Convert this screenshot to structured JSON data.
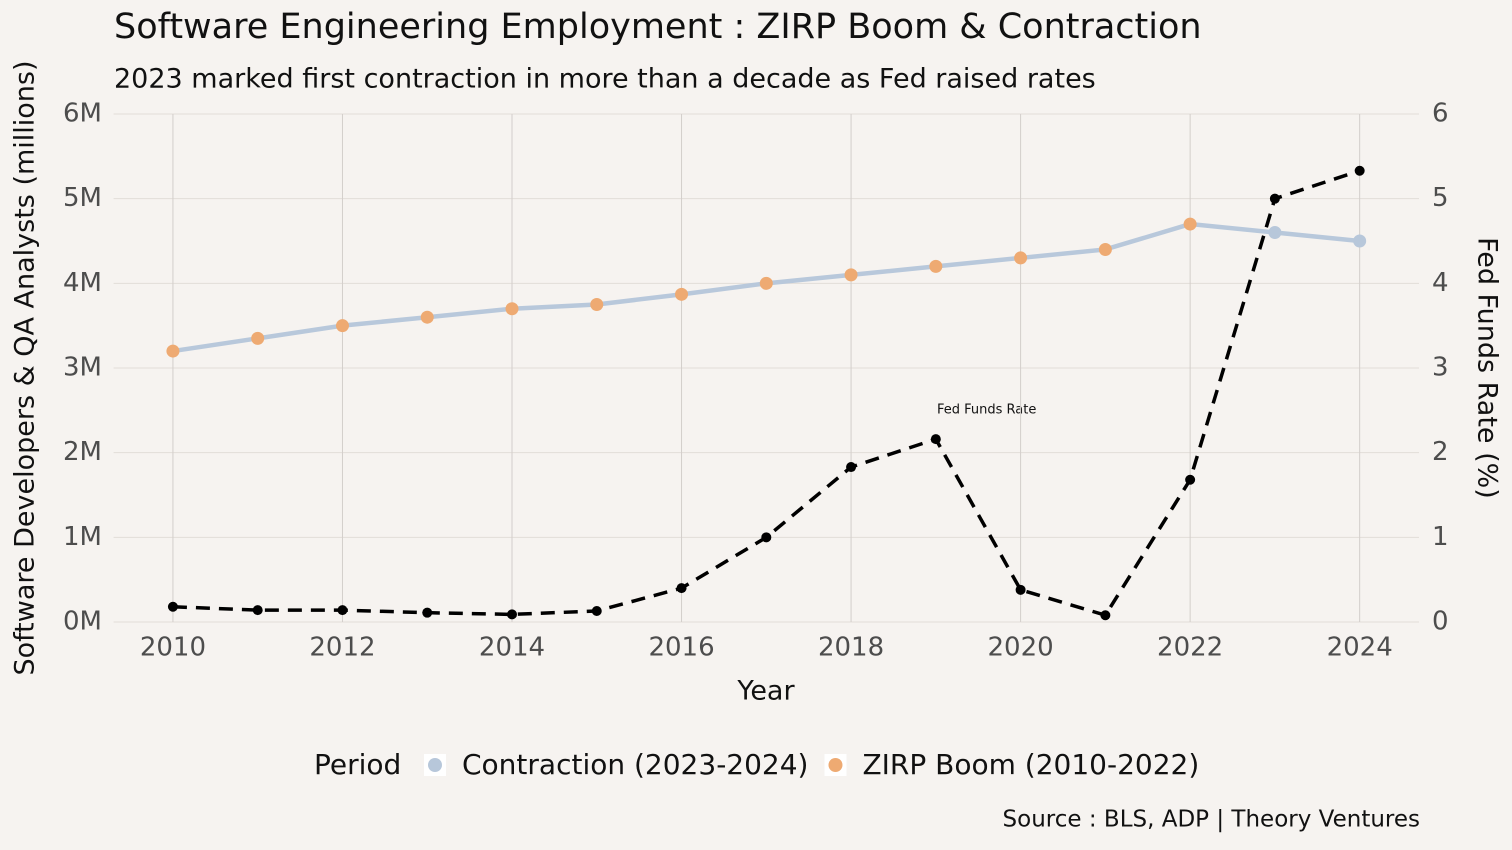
{
  "chart_data": {
    "type": "line",
    "title": "Software Engineering Employment : ZIRP Boom & Contraction",
    "subtitle": "2023 marked first contraction in more than a decade as Fed raised rates",
    "x_label": "Year",
    "y_label": "Software Developers & QA Analysts (millions)",
    "y2_label": "Fed Funds Rate (%)",
    "source": "Source : BLS, ADP | Theory Ventures",
    "annotation": "Fed Funds Rate",
    "legend_title": "Period",
    "legend_position": "bottom",
    "grid": true,
    "line_color": "#b8c8db",
    "x": [
      2010,
      2011,
      2012,
      2013,
      2014,
      2015,
      2016,
      2017,
      2018,
      2019,
      2020,
      2021,
      2022,
      2023,
      2024
    ],
    "xlim": [
      2009.3,
      2024.7
    ],
    "xticks": [
      2010,
      2012,
      2014,
      2016,
      2018,
      2020,
      2022,
      2024
    ],
    "ylim": [
      0,
      6
    ],
    "yticks": [
      {
        "value": 0,
        "label": "0M"
      },
      {
        "value": 1,
        "label": "1M"
      },
      {
        "value": 2,
        "label": "2M"
      },
      {
        "value": 3,
        "label": "3M"
      },
      {
        "value": 4,
        "label": "4M"
      },
      {
        "value": 5,
        "label": "5M"
      },
      {
        "value": 6,
        "label": "6M"
      }
    ],
    "y2lim": [
      0,
      6
    ],
    "y2ticks": [
      0,
      1,
      2,
      3,
      4,
      5,
      6
    ],
    "series": [
      {
        "name": "Contraction (2023-2024)",
        "color": "#b7c7da",
        "values": [
          null,
          null,
          null,
          null,
          null,
          null,
          null,
          null,
          null,
          null,
          null,
          null,
          null,
          4.6,
          4.5
        ]
      },
      {
        "name": "ZIRP Boom (2010-2022)",
        "color": "#eeaa72",
        "values": [
          3.2,
          3.35,
          3.5,
          3.6,
          3.7,
          3.75,
          3.87,
          4.0,
          4.1,
          4.2,
          4.3,
          4.4,
          4.7,
          null,
          null
        ]
      },
      {
        "name": "Fed Funds Rate (%)",
        "axis": "y2",
        "color": "#000000",
        "dashed": true,
        "values": [
          0.18,
          0.14,
          0.14,
          0.11,
          0.09,
          0.13,
          0.4,
          1.0,
          1.83,
          2.16,
          0.38,
          0.08,
          1.68,
          5.0,
          5.33
        ]
      }
    ]
  }
}
